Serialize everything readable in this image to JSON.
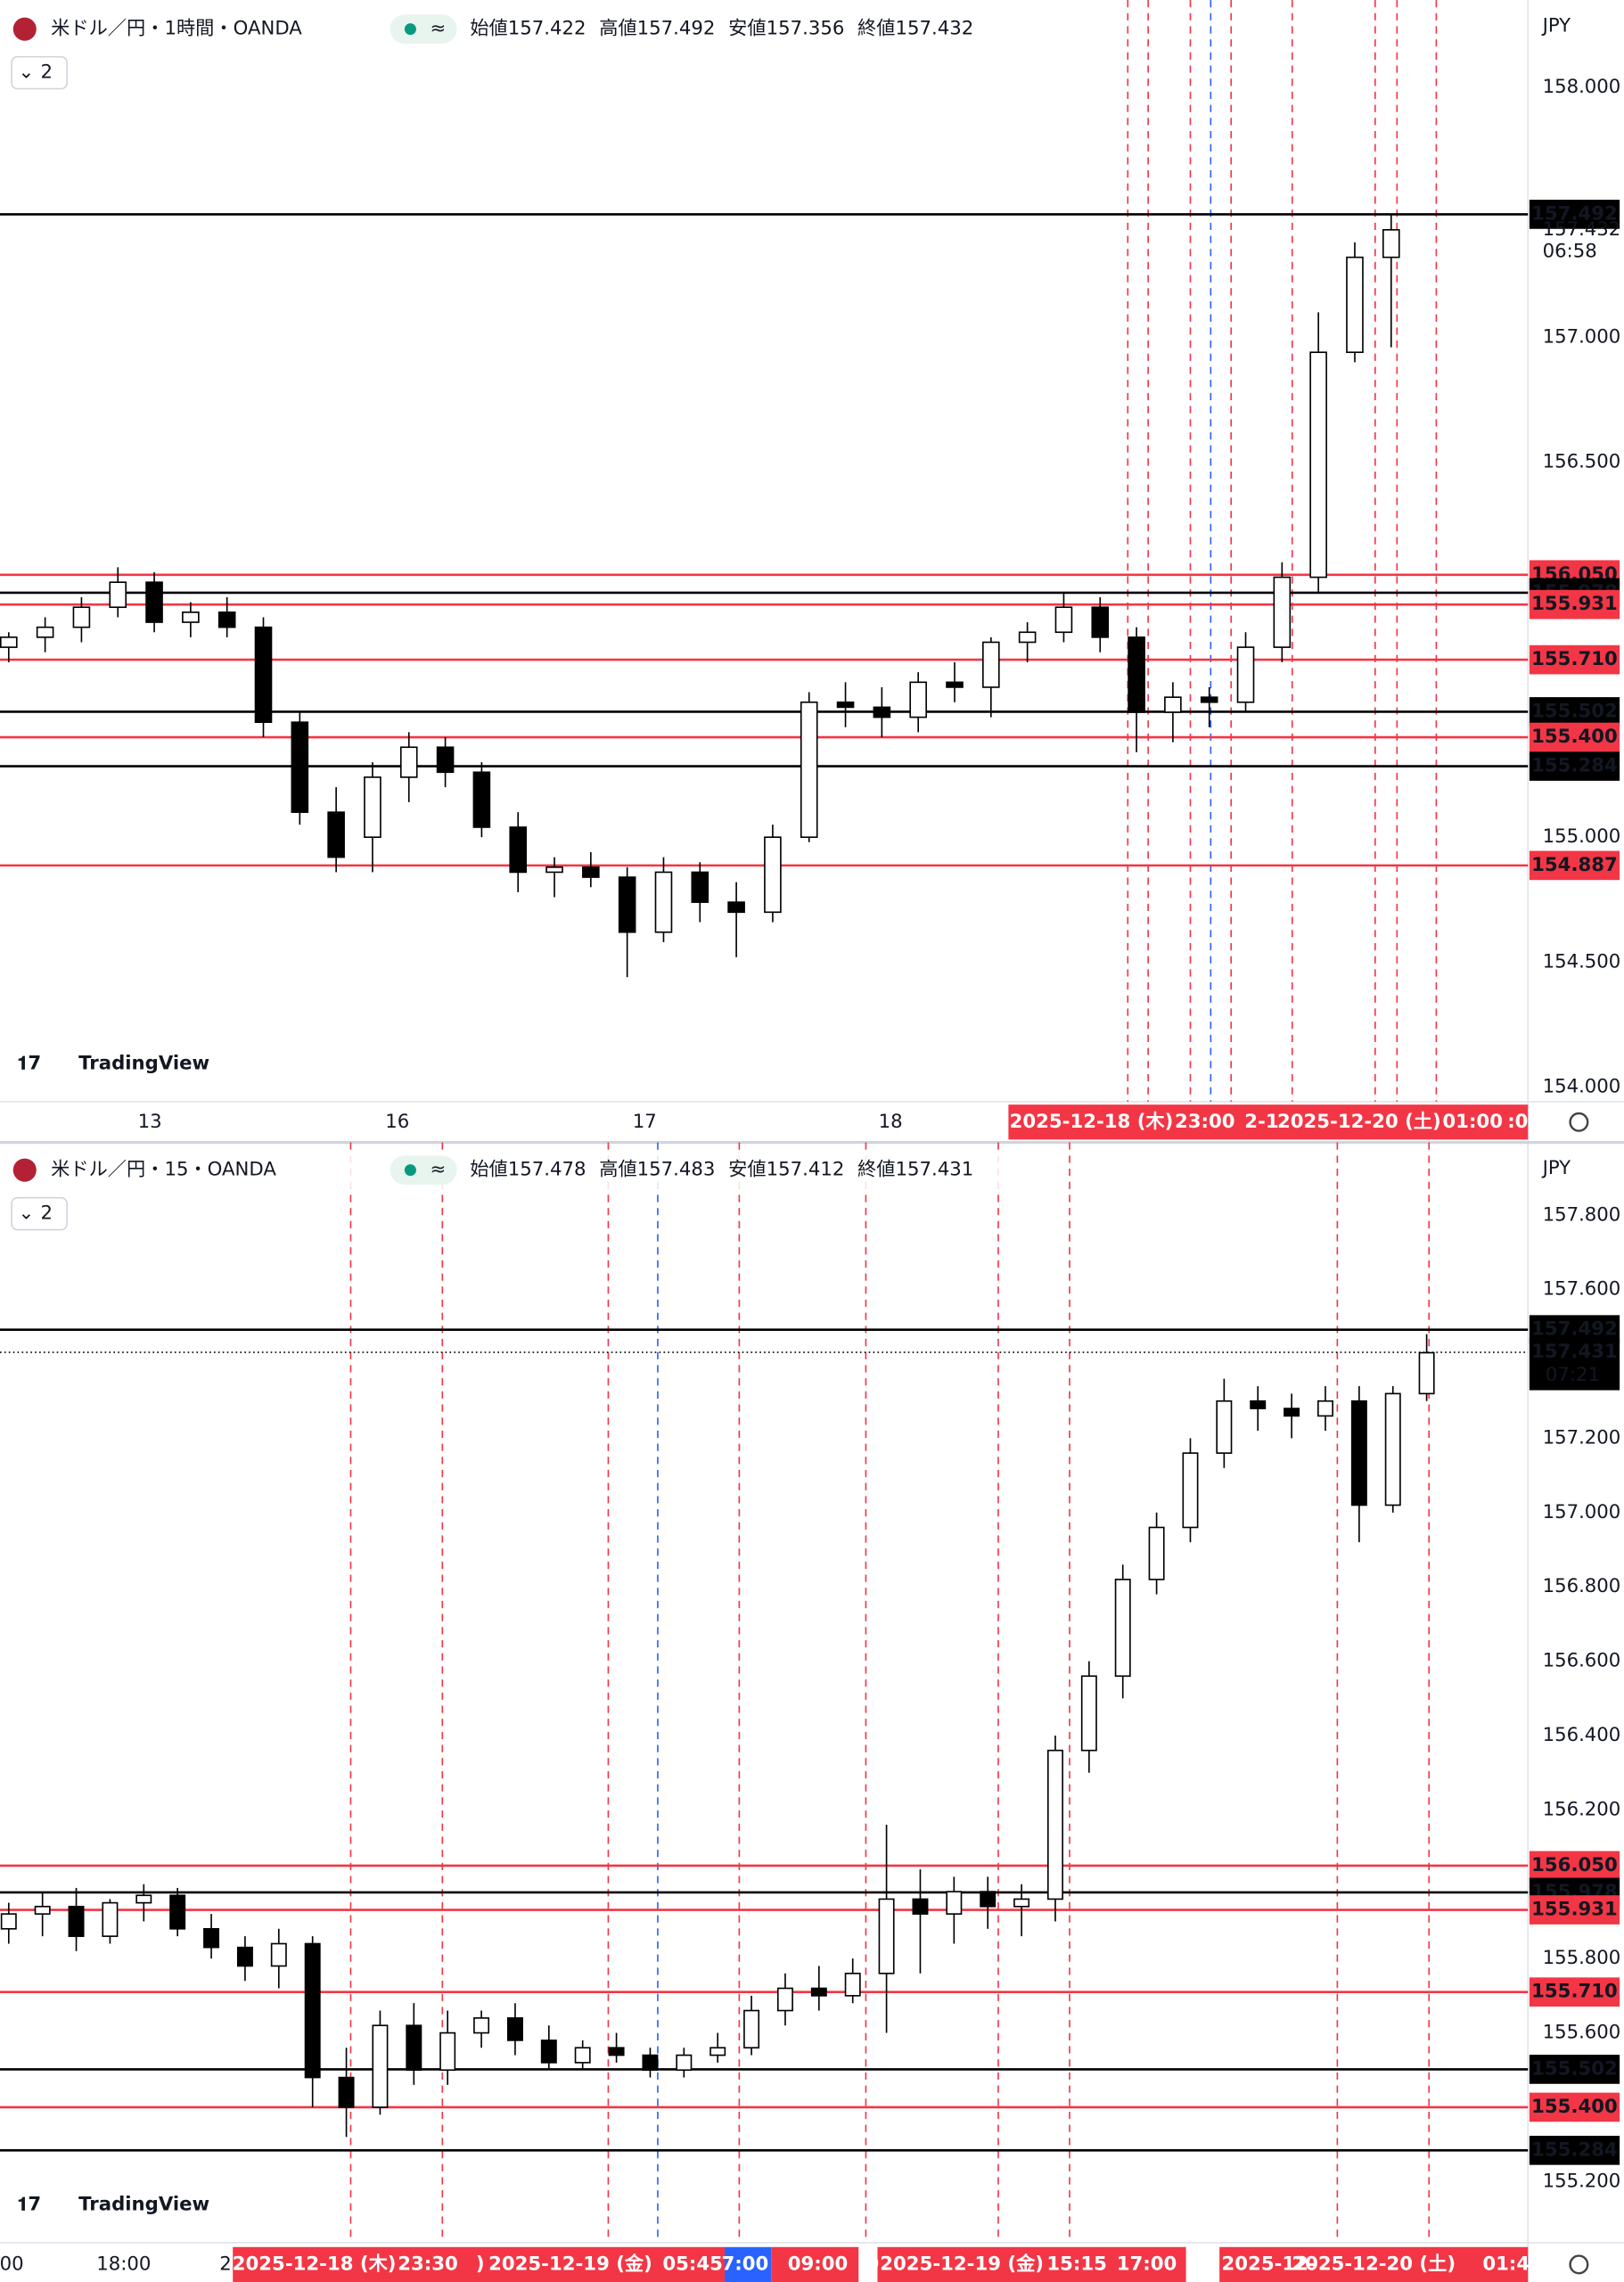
{
  "charts": [
    {
      "symbol": "米ドル／円・1時間・OANDA",
      "ohlc": [
        [
          "始値",
          "157.422"
        ],
        [
          "高値",
          "157.492"
        ],
        [
          "安値",
          "157.356"
        ],
        [
          "終値",
          "157.432"
        ]
      ],
      "indicators": "2",
      "currency": "JPY",
      "logo": "TradingView",
      "price_ticks": [
        "158.000",
        "157.000",
        "156.500",
        "155.000",
        "154.500",
        "154.000"
      ],
      "levels": [
        {
          "price": "157.492",
          "color": "black"
        },
        {
          "price": "156.050",
          "color": "red"
        },
        {
          "price": "155.978",
          "color": "black"
        },
        {
          "price": "155.931",
          "color": "red"
        },
        {
          "price": "155.710",
          "color": "red"
        },
        {
          "price": "155.502",
          "color": "black"
        },
        {
          "price": "155.400",
          "color": "red"
        },
        {
          "price": "155.284",
          "color": "black"
        },
        {
          "price": "154.887",
          "color": "red"
        }
      ],
      "last_price": "157.432",
      "countdown": "06:58",
      "time_labels": [
        "13",
        "16",
        "17",
        "18"
      ],
      "date_flags": [
        "2025-12-18 (木)",
        "23:00",
        "2-1",
        "2025-12-20 (土)",
        "01:00",
        ":0"
      ],
      "candles": [
        [
          155.76,
          155.82,
          155.7,
          155.8
        ],
        [
          155.8,
          155.88,
          155.74,
          155.84
        ],
        [
          155.84,
          155.96,
          155.78,
          155.92
        ],
        [
          155.92,
          156.08,
          155.88,
          156.02
        ],
        [
          156.02,
          156.06,
          155.82,
          155.86
        ],
        [
          155.86,
          155.94,
          155.8,
          155.9
        ],
        [
          155.9,
          155.96,
          155.8,
          155.84
        ],
        [
          155.84,
          155.88,
          155.4,
          155.46
        ],
        [
          155.46,
          155.5,
          155.05,
          155.1
        ],
        [
          155.1,
          155.2,
          154.86,
          154.92
        ],
        [
          155.0,
          155.3,
          154.86,
          155.24
        ],
        [
          155.24,
          155.42,
          155.14,
          155.36
        ],
        [
          155.36,
          155.4,
          155.2,
          155.26
        ],
        [
          155.26,
          155.3,
          155.0,
          155.04
        ],
        [
          155.04,
          155.1,
          154.78,
          154.86
        ],
        [
          154.86,
          154.92,
          154.76,
          154.88
        ],
        [
          154.88,
          154.94,
          154.8,
          154.84
        ],
        [
          154.84,
          154.88,
          154.44,
          154.62
        ],
        [
          154.62,
          154.92,
          154.58,
          154.86
        ],
        [
          154.86,
          154.9,
          154.66,
          154.74
        ],
        [
          154.74,
          154.82,
          154.52,
          154.7
        ],
        [
          154.7,
          155.05,
          154.66,
          155.0
        ],
        [
          155.0,
          155.58,
          154.98,
          155.54
        ],
        [
          155.54,
          155.62,
          155.44,
          155.52
        ],
        [
          155.52,
          155.6,
          155.4,
          155.48
        ],
        [
          155.48,
          155.66,
          155.42,
          155.62
        ],
        [
          155.62,
          155.7,
          155.54,
          155.6
        ],
        [
          155.6,
          155.8,
          155.48,
          155.78
        ],
        [
          155.78,
          155.86,
          155.7,
          155.82
        ],
        [
          155.82,
          155.98,
          155.78,
          155.92
        ],
        [
          155.92,
          155.96,
          155.74,
          155.8
        ],
        [
          155.8,
          155.84,
          155.34,
          155.5
        ],
        [
          155.5,
          155.62,
          155.38,
          155.56
        ],
        [
          155.56,
          155.6,
          155.44,
          155.54
        ],
        [
          155.54,
          155.82,
          155.5,
          155.76
        ],
        [
          155.76,
          156.1,
          155.7,
          156.04
        ],
        [
          156.04,
          157.1,
          155.98,
          156.94
        ],
        [
          156.94,
          157.38,
          156.9,
          157.32
        ],
        [
          157.32,
          157.49,
          156.96,
          157.43
        ]
      ]
    },
    {
      "symbol": "米ドル／円・15・OANDA",
      "ohlc": [
        [
          "始値",
          "157.478"
        ],
        [
          "高値",
          "157.483"
        ],
        [
          "安値",
          "157.412"
        ],
        [
          "終値",
          "157.431"
        ]
      ],
      "indicators": "2",
      "currency": "JPY",
      "logo": "TradingView",
      "price_ticks": [
        "157.800",
        "157.600",
        "157.200",
        "157.000",
        "156.800",
        "156.600",
        "156.400",
        "156.200",
        "155.800",
        "155.600",
        "155.200"
      ],
      "levels": [
        {
          "price": "157.492",
          "color": "black"
        },
        {
          "price": "156.050",
          "color": "red"
        },
        {
          "price": "155.978",
          "color": "black"
        },
        {
          "price": "155.931",
          "color": "red"
        },
        {
          "price": "155.710",
          "color": "red"
        },
        {
          "price": "155.502",
          "color": "black"
        },
        {
          "price": "155.400",
          "color": "red"
        },
        {
          "price": "155.284",
          "color": "black"
        }
      ],
      "last_price": "157.431",
      "countdown": "07:21",
      "time_labels": [
        "00",
        "18:00",
        "2"
      ],
      "date_flags": [
        "2025-12-18 (木)",
        "23:30",
        ")",
        "2025-12-19 (金)",
        "05:45",
        "7:00",
        "09:00",
        ":0",
        "2025-12-19 (金)",
        "15:15",
        "17:00",
        "2",
        "2025-12-",
        "2025-12-20 (土)",
        "01:4"
      ],
      "candles": [
        [
          155.88,
          155.95,
          155.84,
          155.92
        ],
        [
          155.92,
          155.98,
          155.86,
          155.94
        ],
        [
          155.94,
          155.99,
          155.82,
          155.86
        ],
        [
          155.86,
          155.96,
          155.84,
          155.95
        ],
        [
          155.95,
          156.0,
          155.9,
          155.97
        ],
        [
          155.97,
          155.99,
          155.86,
          155.88
        ],
        [
          155.88,
          155.92,
          155.8,
          155.83
        ],
        [
          155.83,
          155.86,
          155.74,
          155.78
        ],
        [
          155.78,
          155.88,
          155.72,
          155.84
        ],
        [
          155.84,
          155.86,
          155.4,
          155.48
        ],
        [
          155.48,
          155.56,
          155.32,
          155.4
        ],
        [
          155.4,
          155.66,
          155.38,
          155.62
        ],
        [
          155.62,
          155.68,
          155.46,
          155.5
        ],
        [
          155.5,
          155.66,
          155.46,
          155.6
        ],
        [
          155.6,
          155.66,
          155.56,
          155.64
        ],
        [
          155.64,
          155.68,
          155.54,
          155.58
        ],
        [
          155.58,
          155.62,
          155.5,
          155.52
        ],
        [
          155.52,
          155.58,
          155.5,
          155.56
        ],
        [
          155.56,
          155.6,
          155.52,
          155.54
        ],
        [
          155.54,
          155.56,
          155.48,
          155.5
        ],
        [
          155.5,
          155.56,
          155.48,
          155.54
        ],
        [
          155.54,
          155.6,
          155.52,
          155.56
        ],
        [
          155.56,
          155.7,
          155.54,
          155.66
        ],
        [
          155.66,
          155.76,
          155.62,
          155.72
        ],
        [
          155.72,
          155.78,
          155.66,
          155.7
        ],
        [
          155.7,
          155.8,
          155.68,
          155.76
        ],
        [
          155.76,
          156.16,
          155.6,
          155.96
        ],
        [
          155.96,
          156.04,
          155.76,
          155.92
        ],
        [
          155.92,
          156.02,
          155.84,
          155.98
        ],
        [
          155.98,
          156.02,
          155.88,
          155.94
        ],
        [
          155.94,
          156.0,
          155.86,
          155.96
        ],
        [
          155.96,
          156.4,
          155.9,
          156.36
        ],
        [
          156.36,
          156.6,
          156.3,
          156.56
        ],
        [
          156.56,
          156.86,
          156.5,
          156.82
        ],
        [
          156.82,
          157.0,
          156.78,
          156.96
        ],
        [
          156.96,
          157.2,
          156.92,
          157.16
        ],
        [
          157.16,
          157.36,
          157.12,
          157.3
        ],
        [
          157.3,
          157.34,
          157.22,
          157.28
        ],
        [
          157.28,
          157.32,
          157.2,
          157.26
        ],
        [
          157.26,
          157.34,
          157.22,
          157.3
        ],
        [
          157.3,
          157.34,
          156.92,
          157.02
        ],
        [
          157.02,
          157.34,
          157.0,
          157.32
        ],
        [
          157.32,
          157.48,
          157.3,
          157.43
        ]
      ]
    }
  ]
}
